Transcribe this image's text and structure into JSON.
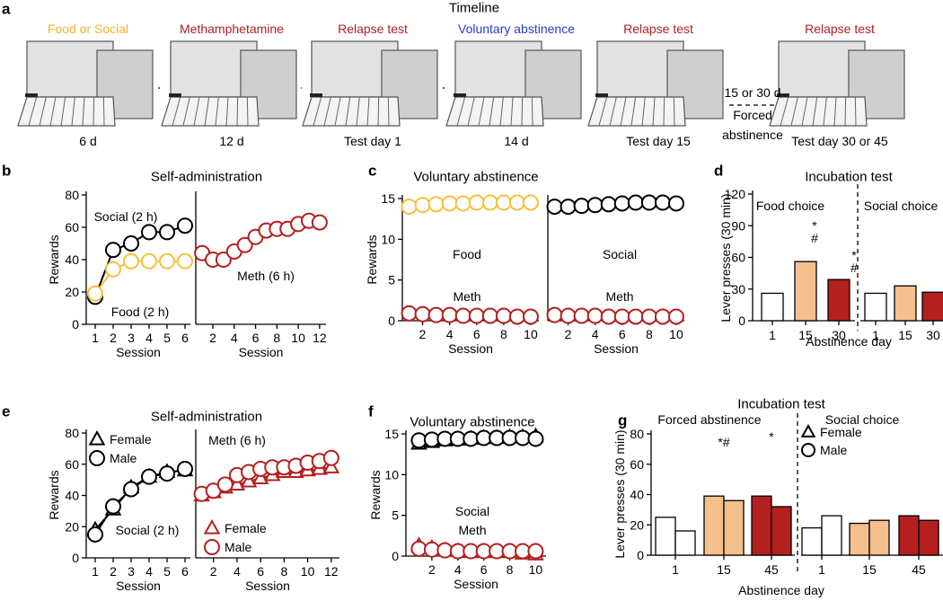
{
  "panel_labels": [
    "a",
    "b",
    "c",
    "d",
    "e",
    "f",
    "g"
  ],
  "timeline": {
    "title": "Timeline",
    "stages": [
      {
        "label": "Food or Social",
        "color": "#f0b32e",
        "duration": "6 d"
      },
      {
        "label": "Methamphetamine",
        "color": "#b3201e",
        "duration": "12 d"
      },
      {
        "label": "Relapse test",
        "color": "#b3201e",
        "duration": "Test day 1"
      },
      {
        "label": "Voluntary abstinence",
        "color": "#1f3fd8",
        "duration": "14 d"
      },
      {
        "label": "Relapse test",
        "color": "#b3201e",
        "duration": "Test day 15"
      },
      {
        "label": "Relapse test",
        "color": "#b3201e",
        "duration": "Test day 30 or 45"
      }
    ],
    "gap": {
      "duration": "15 or 30 d",
      "note": [
        "Forced",
        "abstinence"
      ]
    }
  },
  "chart_data": [
    {
      "type": "line",
      "title": "Self-administration",
      "xlabel": "Session",
      "ylabel": "Rewards",
      "x": [
        1,
        2,
        3,
        4,
        5,
        6
      ],
      "xlim": [
        0.5,
        6.3
      ],
      "xticks": [
        1,
        2,
        3,
        4,
        5,
        6
      ],
      "ylim": [
        0,
        80
      ],
      "yticks": [
        0,
        20,
        40,
        60,
        80
      ],
      "series": [
        {
          "name": "Social (2 h)",
          "color": "#000000",
          "marker": "circle",
          "values": [
            17,
            46,
            50,
            57,
            57,
            61
          ]
        },
        {
          "name": "Food (2 h)",
          "color": "#f5c03e",
          "marker": "circle",
          "values": [
            19,
            34,
            39,
            39,
            39,
            39
          ]
        }
      ]
    },
    {
      "type": "line",
      "xlabel": "Session",
      "x": [
        1,
        2,
        3,
        4,
        5,
        6,
        7,
        8,
        9,
        10,
        11,
        12
      ],
      "xlim": [
        0.4,
        12.6
      ],
      "xticks": [
        2,
        4,
        6,
        8,
        10,
        12
      ],
      "ylim": [
        0,
        80
      ],
      "series": [
        {
          "name": "Meth (6 h)",
          "color": "#b3201e",
          "marker": "circle",
          "values": [
            44,
            40,
            40,
            45,
            49,
            54,
            58,
            59,
            59,
            62,
            64,
            63
          ]
        }
      ]
    },
    {
      "type": "line",
      "title": "Voluntary abstinence",
      "xlabel": "Session",
      "ylabel": "Rewards",
      "x": [
        1,
        2,
        3,
        4,
        5,
        6,
        7,
        8,
        9,
        10
      ],
      "xlim": [
        0.5,
        10.6
      ],
      "xticks": [
        2,
        4,
        6,
        8,
        10
      ],
      "ylim": [
        0,
        15
      ],
      "yticks": [
        0,
        5,
        10,
        15
      ],
      "series": [
        {
          "name": "Food",
          "color": "#f5c03e",
          "marker": "circle",
          "values": [
            14.0,
            14.2,
            14.3,
            14.4,
            14.4,
            14.5,
            14.5,
            14.5,
            14.5,
            14.5
          ]
        },
        {
          "name": "Meth",
          "color": "#b3201e",
          "marker": "circle",
          "values": [
            0.9,
            0.8,
            0.7,
            0.7,
            0.6,
            0.6,
            0.6,
            0.6,
            0.5,
            0.5
          ]
        }
      ]
    },
    {
      "type": "line",
      "xlabel": "Session",
      "x": [
        1,
        2,
        3,
        4,
        5,
        6,
        7,
        8,
        9,
        10
      ],
      "xlim": [
        0.5,
        10.6
      ],
      "xticks": [
        2,
        4,
        6,
        8,
        10
      ],
      "ylim": [
        0,
        15
      ],
      "series": [
        {
          "name": "Social",
          "color": "#000000",
          "marker": "circle",
          "values": [
            14.0,
            14.0,
            14.1,
            14.2,
            14.3,
            14.4,
            14.5,
            14.5,
            14.5,
            14.4
          ]
        },
        {
          "name": "Meth",
          "color": "#b3201e",
          "marker": "circle",
          "values": [
            0.7,
            0.6,
            0.6,
            0.6,
            0.5,
            0.5,
            0.5,
            0.5,
            0.5,
            0.5
          ]
        }
      ]
    },
    {
      "type": "bar",
      "title": "Incubation test",
      "ylabel": "Lever presses (30 min)",
      "xlabel": "Abstinence day",
      "ylim": [
        0,
        120
      ],
      "yticks": [
        0,
        30,
        60,
        90,
        120
      ],
      "colors": [
        "#ffffff",
        "#f5bf8e",
        "#b3201e"
      ],
      "groups": [
        {
          "name": "Food choice",
          "categories": [
            "1",
            "15",
            "30"
          ],
          "values": [
            26,
            56,
            39
          ]
        },
        {
          "name": "Social choice",
          "categories": [
            "1",
            "15",
            "30"
          ],
          "values": [
            26,
            33,
            27
          ]
        }
      ],
      "annotations": [
        "*",
        "#",
        "*",
        "#"
      ]
    },
    {
      "type": "line",
      "title": "Self-administration",
      "xlabel": "Session",
      "ylabel": "Rewards",
      "x": [
        1,
        2,
        3,
        4,
        5,
        6
      ],
      "xlim": [
        0.5,
        6.3
      ],
      "xticks": [
        1,
        2,
        3,
        4,
        5,
        6
      ],
      "ylim": [
        0,
        80
      ],
      "yticks": [
        0,
        20,
        40,
        60,
        80
      ],
      "legend": "upper left",
      "labels": [
        "Social (2 h)"
      ],
      "series": [
        {
          "name": "Female",
          "color": "#000000",
          "marker": "triangle",
          "values": [
            18,
            31,
            45,
            52,
            55,
            56
          ]
        },
        {
          "name": "Male",
          "color": "#000000",
          "marker": "circle",
          "values": [
            15,
            33,
            44,
            52,
            54,
            57
          ]
        }
      ]
    },
    {
      "type": "line",
      "xlabel": "Session",
      "x": [
        1,
        2,
        3,
        4,
        5,
        6,
        7,
        8,
        9,
        10,
        11,
        12
      ],
      "xlim": [
        0.5,
        12.7
      ],
      "xticks": [
        2,
        4,
        6,
        8,
        10,
        12
      ],
      "ylim": [
        0,
        80
      ],
      "legend": "lower left",
      "labels": [
        "Meth (6 h)"
      ],
      "series": [
        {
          "name": "Female",
          "color": "#b3201e",
          "marker": "triangle",
          "values": [
            40,
            42,
            45,
            47,
            49,
            51,
            53,
            55,
            55,
            56,
            57,
            58
          ]
        },
        {
          "name": "Male",
          "color": "#b3201e",
          "marker": "circle",
          "values": [
            41,
            43,
            47,
            53,
            55,
            57,
            58,
            58,
            59,
            61,
            62,
            64
          ]
        }
      ]
    },
    {
      "type": "line",
      "title": "Voluntary abstinence",
      "xlabel": "Session",
      "ylabel": "Rewards",
      "x": [
        1,
        2,
        3,
        4,
        5,
        6,
        7,
        8,
        9,
        10
      ],
      "xlim": [
        0,
        10.8
      ],
      "xticks": [
        2,
        4,
        6,
        8,
        10
      ],
      "ylim": [
        0,
        15
      ],
      "yticks": [
        0,
        5,
        10,
        15
      ],
      "labels": [
        "Social",
        "Meth"
      ],
      "series": [
        {
          "color": "#000000",
          "marker": "triangle",
          "values": [
            13.8,
            14.0,
            14.2,
            14.3,
            14.4,
            14.5,
            14.5,
            14.6,
            14.6,
            14.7
          ]
        },
        {
          "color": "#000000",
          "marker": "circle",
          "values": [
            14.2,
            14.3,
            14.4,
            14.4,
            14.4,
            14.5,
            14.5,
            14.5,
            14.5,
            14.4
          ]
        },
        {
          "color": "#b3201e",
          "marker": "triangle",
          "values": [
            1.3,
            1.0,
            0.7,
            0.6,
            0.5,
            0.5,
            0.5,
            0.5,
            0.3,
            0.2
          ]
        },
        {
          "color": "#b3201e",
          "marker": "circle",
          "values": [
            0.9,
            0.8,
            0.7,
            0.6,
            0.6,
            0.6,
            0.6,
            0.6,
            0.6,
            0.6
          ]
        }
      ]
    },
    {
      "type": "bar",
      "title": "Incubation test",
      "ylabel": "Lever presses (30 min)",
      "xlabel": "Abstinence day",
      "ylim": [
        0,
        80
      ],
      "yticks": [
        0,
        20,
        40,
        60,
        80
      ],
      "colors": [
        "#ffffff",
        "#f5bf8e",
        "#b3201e"
      ],
      "legend": "upper right",
      "series": [
        {
          "name": "Female",
          "marker": "triangle"
        },
        {
          "name": "Male",
          "marker": "circle"
        }
      ],
      "groups": [
        {
          "name": "Forced abstinence",
          "categories": [
            "1",
            "15",
            "45"
          ],
          "values": [
            [
              25,
              39,
              39
            ],
            [
              16,
              36,
              32
            ]
          ]
        },
        {
          "name": "Social choice",
          "categories": [
            "1",
            "15",
            "45"
          ],
          "values": [
            [
              18,
              21,
              26
            ],
            [
              26,
              23,
              23
            ]
          ]
        }
      ],
      "annotations": [
        "*#",
        "*"
      ]
    }
  ]
}
